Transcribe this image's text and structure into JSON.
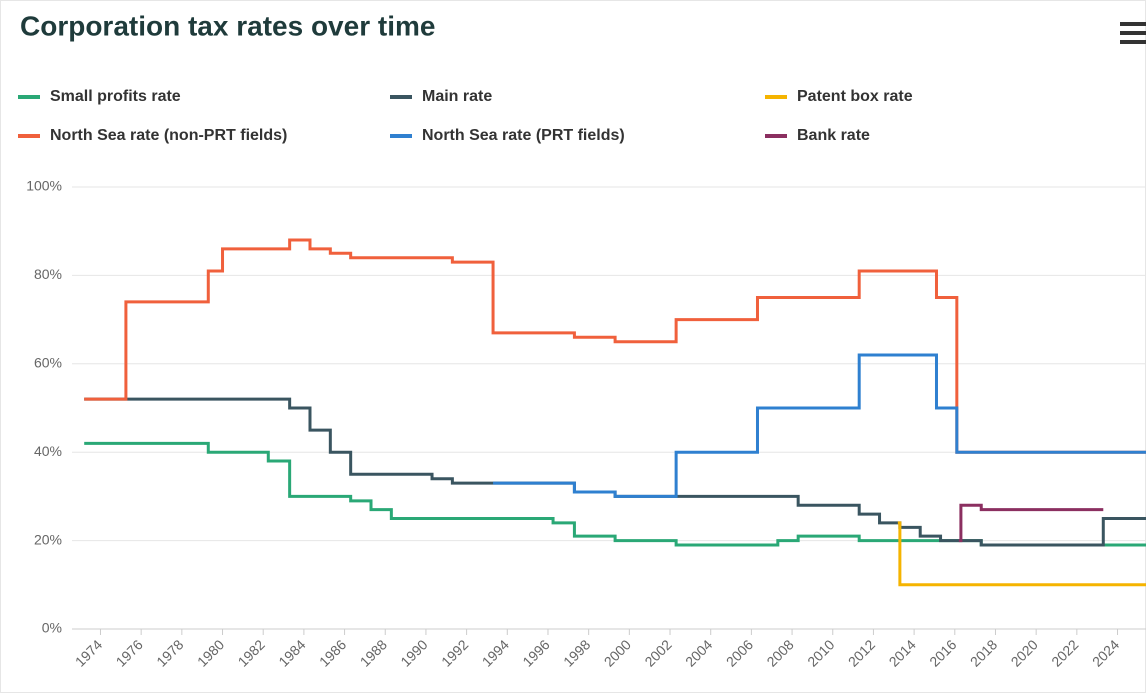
{
  "chart_data": {
    "type": "line",
    "step": true,
    "title": "Corporation tax rates over time",
    "legend": "top",
    "grid": true,
    "xlim": [
      1972.6,
      2025.4
    ],
    "xticks": [
      1974,
      1976,
      1978,
      1980,
      1982,
      1984,
      1986,
      1988,
      1990,
      1992,
      1994,
      1996,
      1998,
      2000,
      2002,
      2004,
      2006,
      2008,
      2010,
      2012,
      2014,
      2016,
      2018,
      2020,
      2022,
      2024
    ],
    "ylim": [
      0,
      100
    ],
    "yticks": [
      {
        "value": 0,
        "label": "0%"
      },
      {
        "value": 20,
        "label": "20%"
      },
      {
        "value": 40,
        "label": "40%"
      },
      {
        "value": 60,
        "label": "60%"
      },
      {
        "value": 80,
        "label": "80%"
      },
      {
        "value": 100,
        "label": "100%"
      }
    ],
    "series": [
      {
        "name": "Small profits rate",
        "color": "#2aa876",
        "x": [
          1973.2,
          1979.3,
          1982.25,
          1983.3,
          1986.3,
          1987.3,
          1988.3,
          1996.25,
          1997.3,
          1999.3,
          2002.3,
          2007.3,
          2008.3,
          2011.3,
          2017.3,
          2025.4
        ],
        "values": [
          42,
          40,
          38,
          30,
          29,
          27,
          25,
          24,
          21,
          20,
          19,
          20,
          21,
          20,
          19,
          19
        ]
      },
      {
        "name": "Main rate",
        "color": "#3a5560",
        "x": [
          1973.2,
          1983.3,
          1984.3,
          1985.3,
          1986.3,
          1990.3,
          1991.3,
          1997.3,
          1999.3,
          2008.3,
          2011.3,
          2012.3,
          2013.3,
          2014.3,
          2015.3,
          2017.3,
          2023.3,
          2025.4
        ],
        "values": [
          52,
          50,
          45,
          40,
          35,
          34,
          33,
          31,
          30,
          28,
          26,
          24,
          23,
          21,
          20,
          19,
          25,
          25
        ]
      },
      {
        "name": "Patent box rate",
        "color": "#f5b400",
        "x": [
          2013.2,
          2013.3,
          2025.4
        ],
        "values": [
          24,
          10,
          10
        ]
      },
      {
        "name": "North Sea rate (non-PRT fields)",
        "color": "#f0603c",
        "x": [
          1973.2,
          1975.25,
          1979.3,
          1980.0,
          1983.3,
          1984.3,
          1985.3,
          1986.3,
          1991.3,
          1993.3,
          1997.3,
          1999.3,
          2002.3,
          2006.3,
          2011.3,
          2015.1,
          2016.1,
          2025.4
        ],
        "values": [
          52,
          74,
          81,
          86,
          88,
          86,
          85,
          84,
          83,
          67,
          66,
          65,
          70,
          75,
          81,
          75,
          40,
          40
        ]
      },
      {
        "name": "North Sea rate (PRT fields)",
        "color": "#2f80d0",
        "x": [
          1993.3,
          1997.3,
          1999.3,
          2002.3,
          2006.3,
          2011.3,
          2015.1,
          2016.1,
          2025.4
        ],
        "values": [
          33,
          31,
          30,
          40,
          50,
          62,
          50,
          40,
          40
        ]
      },
      {
        "name": "Bank rate",
        "color": "#8b2f60",
        "x": [
          2016.2,
          2016.3,
          2017.3,
          2023.3
        ],
        "values": [
          20,
          28,
          27,
          27
        ]
      }
    ]
  }
}
